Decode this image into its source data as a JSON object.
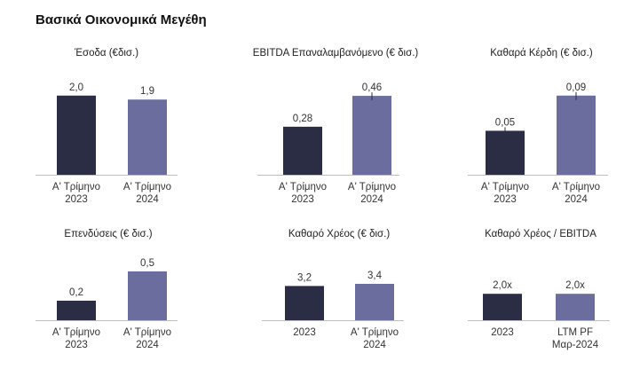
{
  "page": {
    "title": "Βασικά Οικονομικά Μεγέθη"
  },
  "colors": {
    "dark": "#2a2d43",
    "light": "#6b6d9e",
    "axis": "#bdbdbd",
    "errbar": "#2a2d43"
  },
  "chart_data": [
    {
      "type": "bar",
      "title": "Έσοδα (€δισ.)",
      "categories": [
        [
          "Α' Τρίμηνο",
          "2023"
        ],
        [
          "Α' Τρίμηνο",
          "2024"
        ]
      ],
      "values": [
        2.0,
        1.9
      ],
      "data_labels": [
        "2,0",
        "1,9"
      ],
      "error_bar": [
        false,
        false
      ],
      "ylim": [
        0,
        2.6
      ]
    },
    {
      "type": "bar",
      "title": "EBITDA Επαναλαμβανόμενο (€ δισ.)",
      "categories": [
        [
          "Α' Τρίμηνο",
          "2023"
        ],
        [
          "Α' Τρίμηνο",
          "2024"
        ]
      ],
      "values": [
        0.28,
        0.46
      ],
      "data_labels": [
        "0,28",
        "0,46"
      ],
      "error_bar": [
        false,
        true
      ],
      "ylim": [
        0,
        0.6
      ]
    },
    {
      "type": "bar",
      "title": "Καθαρά Κέρδη (€ δισ.)",
      "categories": [
        [
          "Α' Τρίμηνο",
          "2023"
        ],
        [
          "Α' Τρίμηνο",
          "2024"
        ]
      ],
      "values": [
        0.05,
        0.09
      ],
      "data_labels": [
        "0,05",
        "0,09"
      ],
      "error_bar": [
        true,
        true
      ],
      "ylim": [
        0,
        0.117
      ]
    },
    {
      "type": "bar",
      "title": "Επενδύσεις (€ δισ.)",
      "categories": [
        [
          "Α' Τρίμηνο",
          "2023"
        ],
        [
          "Α' Τρίμηνο",
          "2024"
        ]
      ],
      "values": [
        0.2,
        0.5
      ],
      "data_labels": [
        "0,2",
        "0,5"
      ],
      "error_bar": [
        false,
        false
      ],
      "ylim": [
        0,
        0.69
      ]
    },
    {
      "type": "bar",
      "title": "Καθαρό Χρέος (€ δισ.)",
      "categories": [
        [
          "2023"
        ],
        [
          "Α' Τρίμηνο",
          "2024"
        ]
      ],
      "values": [
        3.2,
        3.4
      ],
      "data_labels": [
        "3,2",
        "3,4"
      ],
      "error_bar": [
        false,
        false
      ],
      "ylim": [
        0,
        6.3
      ]
    },
    {
      "type": "bar",
      "title": "Καθαρό Χρέος / EBITDA",
      "categories": [
        [
          "2023"
        ],
        [
          "LTM PF",
          "Μαρ-2024"
        ]
      ],
      "values": [
        2.0,
        2.0
      ],
      "data_labels": [
        "2,0x",
        "2,0x"
      ],
      "error_bar": [
        false,
        false
      ],
      "ylim": [
        0,
        5.1
      ]
    }
  ]
}
